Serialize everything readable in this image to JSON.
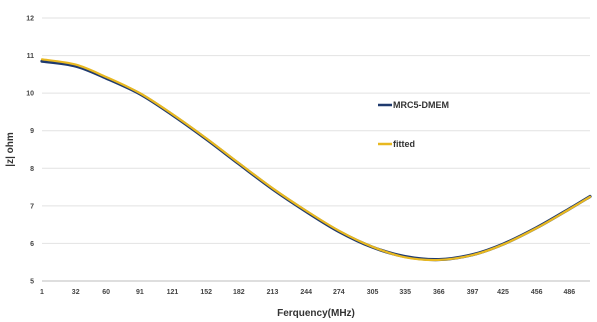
{
  "chart_data": {
    "type": "line",
    "title": "",
    "xlabel": "Ferquency(MHz)",
    "ylabel": "|z| ohm",
    "x_tick_labels": [
      "1",
      "32",
      "60",
      "91",
      "121",
      "152",
      "182",
      "213",
      "244",
      "274",
      "305",
      "335",
      "366",
      "397",
      "425",
      "456",
      "486"
    ],
    "x_range": [
      1,
      505
    ],
    "ylim": [
      5,
      12
    ],
    "y_ticks": [
      5,
      6,
      7,
      8,
      9,
      10,
      11,
      12
    ],
    "grid": "horizontal",
    "legend_position": "right",
    "series": [
      {
        "name": "MRC5-DMEM",
        "color": "#1f3a6e",
        "x": [
          1,
          32,
          60,
          91,
          121,
          152,
          182,
          213,
          244,
          274,
          305,
          335,
          366,
          397,
          425,
          456,
          486,
          505
        ],
        "y": [
          10.85,
          10.72,
          10.4,
          9.98,
          9.42,
          8.78,
          8.12,
          7.45,
          6.85,
          6.32,
          5.9,
          5.65,
          5.57,
          5.7,
          5.98,
          6.42,
          6.92,
          7.25
        ]
      },
      {
        "name": "fitted",
        "color": "#e8b820",
        "x": [
          1,
          32,
          60,
          91,
          121,
          152,
          182,
          213,
          244,
          274,
          305,
          335,
          366,
          397,
          425,
          456,
          486,
          505
        ],
        "y": [
          10.9,
          10.76,
          10.43,
          10.0,
          9.44,
          8.8,
          8.14,
          7.47,
          6.87,
          6.34,
          5.91,
          5.63,
          5.56,
          5.69,
          5.97,
          6.41,
          6.91,
          7.24
        ]
      }
    ]
  }
}
